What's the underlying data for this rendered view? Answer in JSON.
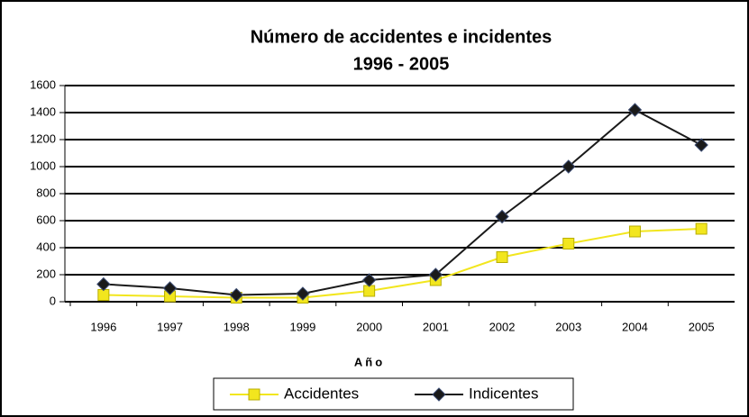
{
  "chart_data": {
    "type": "line",
    "title": "Número de accidentes e incidentes",
    "subtitle": "1996 - 2005",
    "x_label": "Año",
    "categories": [
      "1996",
      "1997",
      "1998",
      "1999",
      "2000",
      "2001",
      "2002",
      "2003",
      "2004",
      "2005"
    ],
    "series": [
      {
        "name": "Accidentes",
        "color": "#f2e61e",
        "marker": "square",
        "values": [
          50,
          40,
          30,
          30,
          80,
          160,
          330,
          430,
          520,
          540
        ]
      },
      {
        "name": "Indicentes",
        "color": "#1a1a1a",
        "marker": "diamond",
        "values": [
          130,
          100,
          50,
          60,
          160,
          200,
          630,
          1000,
          1420,
          1160
        ]
      }
    ],
    "ylim": [
      0,
      1600
    ],
    "yticks": [
      0,
      200,
      400,
      600,
      800,
      1000,
      1200,
      1400,
      1600
    ],
    "grid": true,
    "legend": "bottom"
  }
}
